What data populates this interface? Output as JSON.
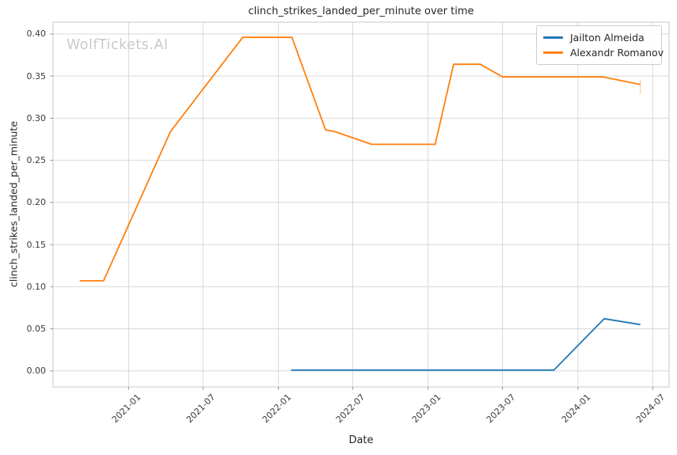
{
  "watermark": "WolfTickets.AI",
  "chart_data": {
    "type": "line",
    "title": "clinch_strikes_landed_per_minute over time",
    "xlabel": "Date",
    "ylabel": "clinch_strikes_landed_per_minute",
    "grid": true,
    "legend_position": "upper right",
    "x_range": [
      "2020-07-01",
      "2024-08-10"
    ],
    "y_range": [
      -0.019,
      0.414
    ],
    "x_ticks": [
      {
        "value": "2021-01-01",
        "label": "2021-01"
      },
      {
        "value": "2021-07-01",
        "label": "2021-07"
      },
      {
        "value": "2022-01-01",
        "label": "2022-01"
      },
      {
        "value": "2022-07-01",
        "label": "2022-07"
      },
      {
        "value": "2023-01-01",
        "label": "2023-01"
      },
      {
        "value": "2023-07-01",
        "label": "2023-07"
      },
      {
        "value": "2024-01-01",
        "label": "2024-01"
      },
      {
        "value": "2024-07-01",
        "label": "2024-07"
      }
    ],
    "y_ticks": [
      0.0,
      0.05,
      0.1,
      0.15,
      0.2,
      0.25,
      0.3,
      0.35,
      0.4
    ],
    "colors": {
      "grid": "#d9d9d9",
      "spine": "#c8c8c8",
      "tick_mark": "#8c8c8c"
    },
    "series": [
      {
        "name": "Jailton Almeida",
        "color": "#1f77b4",
        "end_marker": false,
        "points": [
          [
            "2022-02-01",
            0.001
          ],
          [
            "2023-11-03",
            0.001
          ],
          [
            "2024-03-05",
            0.062
          ],
          [
            "2024-06-01",
            0.055
          ]
        ]
      },
      {
        "name": "Alexandr Romanov",
        "color": "#ff7f0e",
        "end_marker": true,
        "points": [
          [
            "2020-09-04",
            0.107
          ],
          [
            "2020-11-01",
            0.107
          ],
          [
            "2021-04-13",
            0.284
          ],
          [
            "2021-10-06",
            0.396
          ],
          [
            "2022-02-03",
            0.396
          ],
          [
            "2022-04-26",
            0.286
          ],
          [
            "2022-05-19",
            0.284
          ],
          [
            "2022-08-16",
            0.269
          ],
          [
            "2023-01-18",
            0.269
          ],
          [
            "2023-03-04",
            0.364
          ],
          [
            "2023-05-08",
            0.364
          ],
          [
            "2023-07-01",
            0.349
          ],
          [
            "2024-03-02",
            0.349
          ],
          [
            "2024-06-01",
            0.34
          ]
        ]
      }
    ]
  }
}
